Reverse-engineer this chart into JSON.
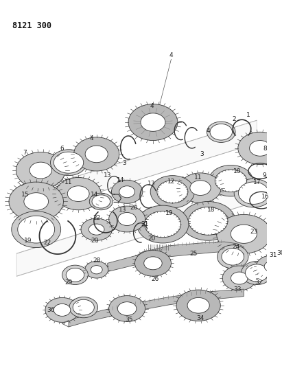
{
  "title": "8121 300",
  "bg_color": "#ffffff",
  "fig_width": 4.11,
  "fig_height": 5.33,
  "dpi": 100,
  "ec": "#333333",
  "fc_gear": "#cccccc",
  "fc_white": "#ffffff",
  "fc_dark": "#999999",
  "lw": 0.6
}
